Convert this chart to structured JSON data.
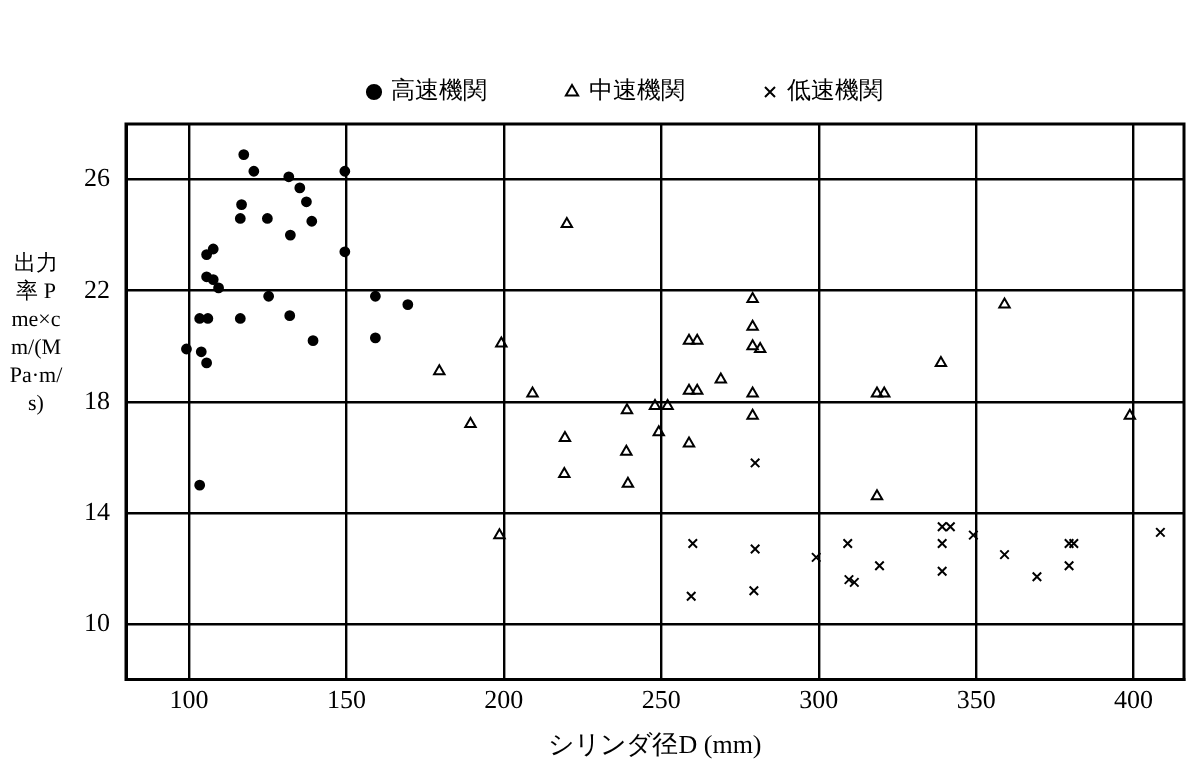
{
  "chart_data": {
    "type": "scatter",
    "xlabel": "シリンダ径D (mm)",
    "ylabel": "出力率 Pme×cm/(MPa·m/s)",
    "xlim": [
      80,
      416
    ],
    "xticks": [
      100,
      150,
      200,
      250,
      300,
      350,
      400
    ],
    "ylim": [
      8,
      28
    ],
    "yticks": [
      10,
      14,
      18,
      22,
      26
    ],
    "grid": true,
    "legend": "top",
    "series": [
      {
        "name": "高速機関",
        "color": "#000000",
        "marker": "circle",
        "x": [
          117.4,
          120.6,
          131.7,
          149.5,
          135.2,
          137.3,
          116.7,
          116.3,
          124.9,
          139,
          132.2,
          149.5,
          107.7,
          105.6,
          105.6,
          107.7,
          109.4,
          125.3,
          159.2,
          103.4,
          106,
          116.3,
          132,
          139.4,
          159.2,
          99.2,
          103.9,
          105.6,
          103.4,
          169.5
        ],
        "values": [
          26.9,
          26.3,
          26.1,
          26.3,
          25.7,
          25.2,
          25.1,
          24.6,
          24.6,
          24.5,
          24,
          23.4,
          23.5,
          23.3,
          22.5,
          22.4,
          22.1,
          21.8,
          21.8,
          21,
          21,
          21,
          21.1,
          20.2,
          20.3,
          19.9,
          19.8,
          19.4,
          15,
          21.5
        ]
      },
      {
        "name": "中速機関",
        "color": "#000000",
        "marker": "triangle",
        "x": [
          199.2,
          179.5,
          209.1,
          239.1,
          189.4,
          219.4,
          238.9,
          219.2,
          239.4,
          198.6,
          220,
          279,
          279,
          258.8,
          261.4,
          279,
          281.4,
          268.9,
          258.8,
          261.4,
          279,
          248,
          252,
          279,
          249.2,
          258.8,
          359,
          338.8,
          318.5,
          320.8,
          398.8,
          318.5
        ],
        "values": [
          20.1,
          19.1,
          18.3,
          17.7,
          17.2,
          16.7,
          16.2,
          15.4,
          15.05,
          13.2,
          24.4,
          21.7,
          20.7,
          20.2,
          20.2,
          20,
          19.9,
          18.8,
          18.4,
          18.4,
          18.3,
          17.85,
          17.85,
          17.5,
          16.9,
          16.5,
          21.5,
          19.4,
          18.3,
          18.3,
          17.5,
          14.6
        ]
      },
      {
        "name": "低速機関",
        "color": "#000000",
        "marker": "cross",
        "x": [
          279.8,
          260,
          279.8,
          299.2,
          309.2,
          259.5,
          279.4,
          319.3,
          309.6,
          311.3,
          339.2,
          341.8,
          339.2,
          339.2,
          349.1,
          359,
          369.3,
          379.5,
          381,
          379.5,
          408.5
        ],
        "values": [
          15.8,
          12.9,
          12.7,
          12.4,
          12.9,
          11,
          11.2,
          12.1,
          11.6,
          11.5,
          13.5,
          13.5,
          12.9,
          11.9,
          13.2,
          12.5,
          11.7,
          12.9,
          12.9,
          12.1,
          13.3
        ]
      }
    ]
  }
}
